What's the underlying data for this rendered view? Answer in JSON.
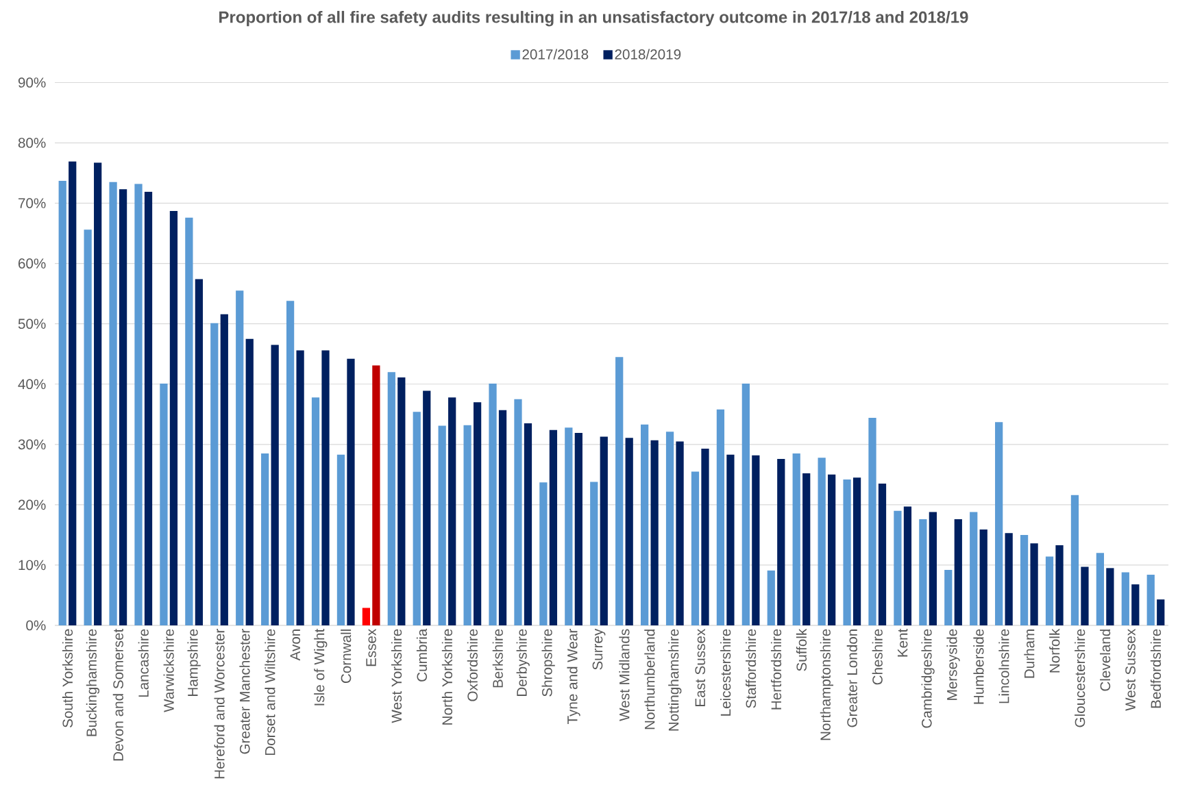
{
  "chart_data": {
    "type": "bar",
    "title": "Proportion of all fire safety audits resulting in an unsatisfactory outcome in 2017/18 and 2018/19",
    "categories": [
      "South Yorkshire",
      "Buckinghamshire",
      "Devon and Somerset",
      "Lancashire",
      "Warwickshire",
      "Hampshire",
      "Hereford and Worcester",
      "Greater Manchester",
      "Dorset and Wiltshire",
      "Avon",
      "Isle of Wight",
      "Cornwall",
      "Essex",
      "West Yorkshire",
      "Cumbria",
      "North Yorkshire",
      "Oxfordshire",
      "Berkshire",
      "Derbyshire",
      "Shropshire",
      "Tyne and Wear",
      "Surrey",
      "West Midlands",
      "Northumberland",
      "Nottinghamshire",
      "East Sussex",
      "Leicestershire",
      "Staffordshire",
      "Hertfordshire",
      "Suffolk",
      "Northamptonshire",
      "Greater London",
      "Cheshire",
      "Kent",
      "Cambridgeshire",
      "Merseyside",
      "Humberside",
      "Lincolnshire",
      "Durham",
      "Norfolk",
      "Gloucestershire",
      "Cleveland",
      "West Sussex",
      "Bedfordshire"
    ],
    "series": [
      {
        "name": "2017/2018",
        "color": "#5b9bd5",
        "colors": [
          "#5b9bd5",
          "#5b9bd5",
          "#5b9bd5",
          "#5b9bd5",
          "#5b9bd5",
          "#5b9bd5",
          "#5b9bd5",
          "#5b9bd5",
          "#5b9bd5",
          "#5b9bd5",
          "#5b9bd5",
          "#5b9bd5",
          "#ff0000",
          "#5b9bd5",
          "#5b9bd5",
          "#5b9bd5",
          "#5b9bd5",
          "#5b9bd5",
          "#5b9bd5",
          "#5b9bd5",
          "#5b9bd5",
          "#5b9bd5",
          "#5b9bd5",
          "#5b9bd5",
          "#5b9bd5",
          "#5b9bd5",
          "#5b9bd5",
          "#5b9bd5",
          "#5b9bd5",
          "#5b9bd5",
          "#5b9bd5",
          "#5b9bd5",
          "#5b9bd5",
          "#5b9bd5",
          "#5b9bd5",
          "#5b9bd5",
          "#5b9bd5",
          "#5b9bd5",
          "#5b9bd5",
          "#5b9bd5",
          "#5b9bd5",
          "#5b9bd5",
          "#5b9bd5",
          "#5b9bd5"
        ],
        "values": [
          73.7,
          65.6,
          73.5,
          73.2,
          40.1,
          67.6,
          50.1,
          55.5,
          28.5,
          53.8,
          37.8,
          28.3,
          2.9,
          42.0,
          35.4,
          33.1,
          33.2,
          40.1,
          37.5,
          23.7,
          32.8,
          23.8,
          44.5,
          33.3,
          32.1,
          25.5,
          35.8,
          40.1,
          9.1,
          28.5,
          27.8,
          24.2,
          34.4,
          19.0,
          17.6,
          9.2,
          18.8,
          33.7,
          15.0,
          11.4,
          21.6,
          12.0,
          8.8,
          8.4
        ]
      },
      {
        "name": "2018/2019",
        "color": "#002060",
        "colors": [
          "#002060",
          "#002060",
          "#002060",
          "#002060",
          "#002060",
          "#002060",
          "#002060",
          "#002060",
          "#002060",
          "#002060",
          "#002060",
          "#002060",
          "#c00000",
          "#002060",
          "#002060",
          "#002060",
          "#002060",
          "#002060",
          "#002060",
          "#002060",
          "#002060",
          "#002060",
          "#002060",
          "#002060",
          "#002060",
          "#002060",
          "#002060",
          "#002060",
          "#002060",
          "#002060",
          "#002060",
          "#002060",
          "#002060",
          "#002060",
          "#002060",
          "#002060",
          "#002060",
          "#002060",
          "#002060",
          "#002060",
          "#002060",
          "#002060",
          "#002060",
          "#002060"
        ],
        "values": [
          76.9,
          76.7,
          72.3,
          71.9,
          68.7,
          57.4,
          51.6,
          47.5,
          46.5,
          45.6,
          45.6,
          44.2,
          43.1,
          41.1,
          38.9,
          37.8,
          37.0,
          35.7,
          33.5,
          32.4,
          31.9,
          31.3,
          31.1,
          30.7,
          30.5,
          29.3,
          28.3,
          28.2,
          27.6,
          25.2,
          25.0,
          24.5,
          23.5,
          19.7,
          18.8,
          17.6,
          15.9,
          15.3,
          13.6,
          13.3,
          9.7,
          9.5,
          6.8,
          4.3
        ]
      }
    ],
    "ylim": [
      0,
      90
    ],
    "yticks": [
      {
        "value": 0,
        "label": "0%"
      },
      {
        "value": 10,
        "label": "10%"
      },
      {
        "value": 20,
        "label": "20%"
      },
      {
        "value": 30,
        "label": "30%"
      },
      {
        "value": 40,
        "label": "40%"
      },
      {
        "value": 50,
        "label": "50%"
      },
      {
        "value": 60,
        "label": "60%"
      },
      {
        "value": 70,
        "label": "70%"
      },
      {
        "value": 80,
        "label": "80%"
      },
      {
        "value": 90,
        "label": "90%"
      }
    ],
    "grid": "y",
    "legend": "top"
  }
}
